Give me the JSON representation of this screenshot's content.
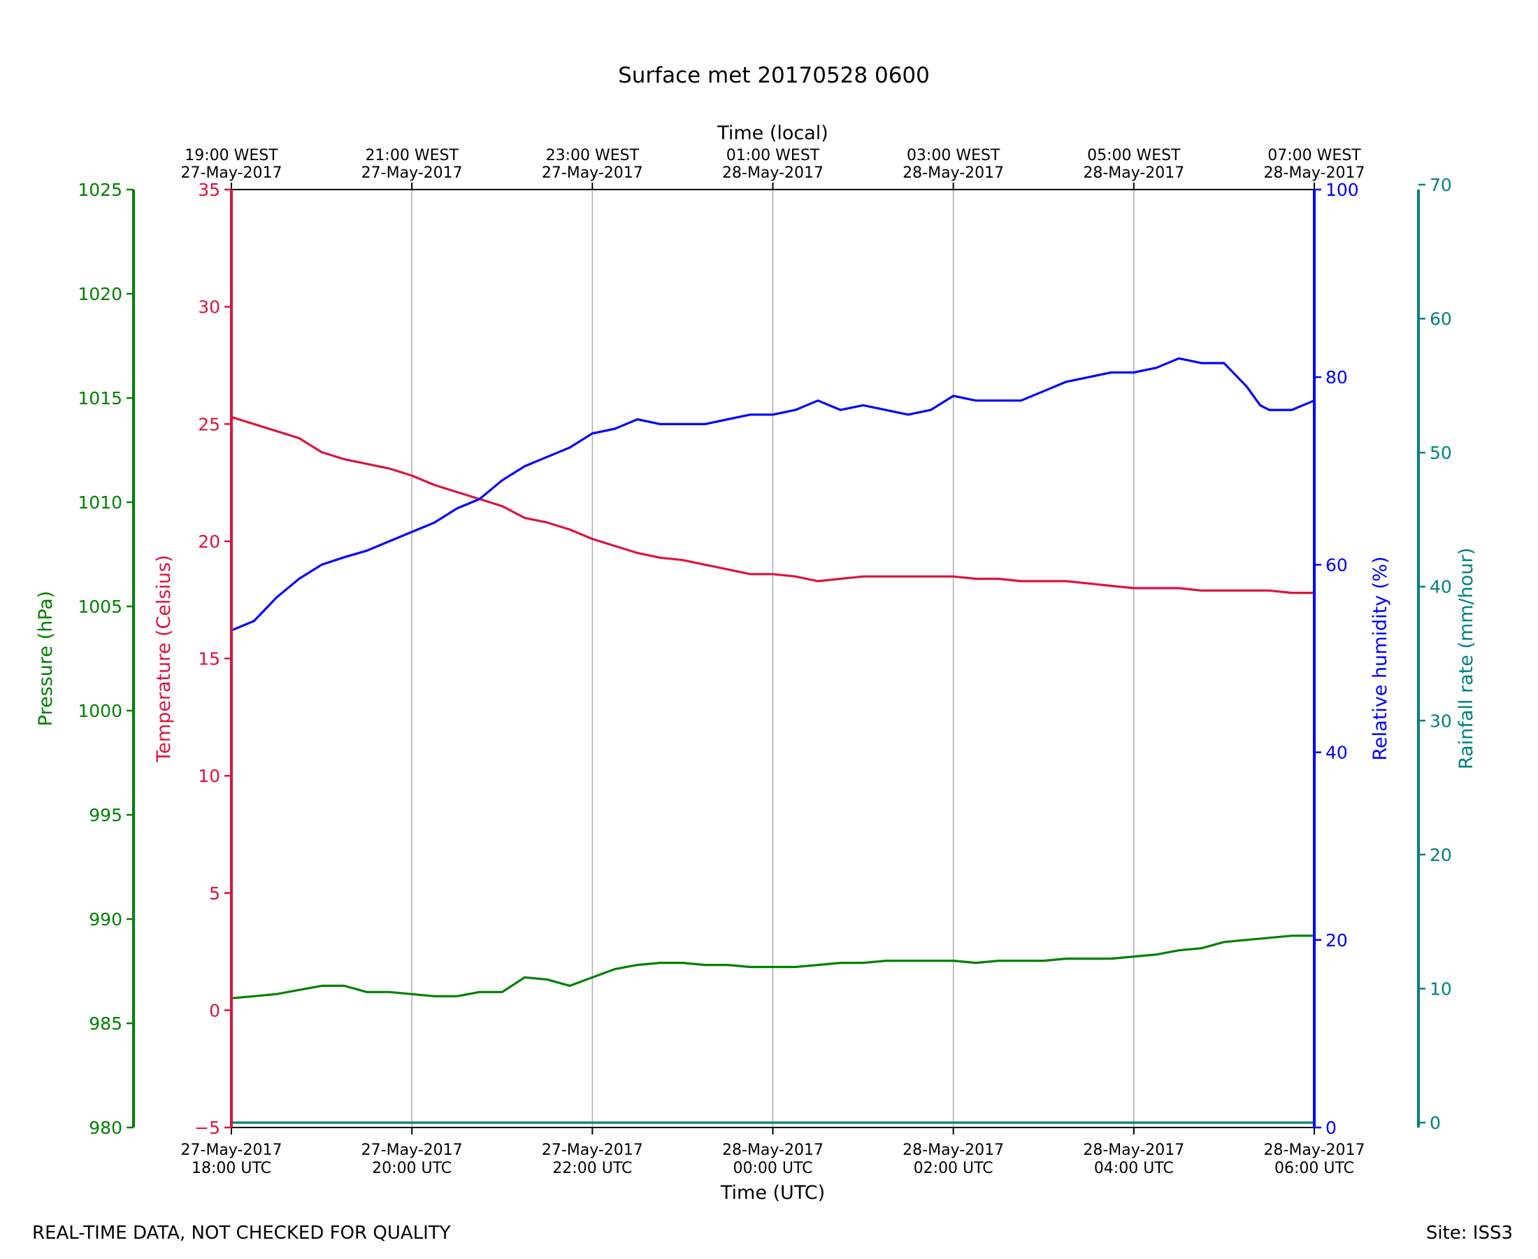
{
  "chart_data": {
    "type": "line",
    "title": "Surface met 20170528 0600",
    "x_axis": {
      "label": "Time (UTC)",
      "range_hours": [
        0,
        12
      ],
      "grid": true,
      "ticks": [
        {
          "h": 0,
          "line1": "27-May-2017",
          "line2": "18:00 UTC"
        },
        {
          "h": 2,
          "line1": "27-May-2017",
          "line2": "20:00 UTC"
        },
        {
          "h": 4,
          "line1": "27-May-2017",
          "line2": "22:00 UTC"
        },
        {
          "h": 6,
          "line1": "28-May-2017",
          "line2": "00:00 UTC"
        },
        {
          "h": 8,
          "line1": "28-May-2017",
          "line2": "02:00 UTC"
        },
        {
          "h": 10,
          "line1": "28-May-2017",
          "line2": "04:00 UTC"
        },
        {
          "h": 12,
          "line1": "28-May-2017",
          "line2": "06:00 UTC"
        }
      ]
    },
    "x_top_axis": {
      "label": "Time (local)",
      "ticks": [
        {
          "h": 0,
          "line1": "19:00 WEST",
          "line2": "27-May-2017"
        },
        {
          "h": 2,
          "line1": "21:00 WEST",
          "line2": "27-May-2017"
        },
        {
          "h": 4,
          "line1": "23:00 WEST",
          "line2": "27-May-2017"
        },
        {
          "h": 6,
          "line1": "01:00 WEST",
          "line2": "28-May-2017"
        },
        {
          "h": 8,
          "line1": "03:00 WEST",
          "line2": "28-May-2017"
        },
        {
          "h": 10,
          "line1": "05:00 WEST",
          "line2": "28-May-2017"
        },
        {
          "h": 12,
          "line1": "07:00 WEST",
          "line2": "28-May-2017"
        }
      ]
    },
    "y_axes": {
      "pressure": {
        "label": "Pressure (hPa)",
        "color": "#008000",
        "ylim": [
          980,
          1025
        ],
        "ticks": [
          "980",
          "985",
          "990",
          "995",
          "1000",
          "1005",
          "1010",
          "1015",
          "1020",
          "1025"
        ]
      },
      "temperature": {
        "label": "Temperature (Celsius)",
        "color": "#dc143c",
        "ylim": [
          -5,
          35
        ],
        "ticks": [
          "−5",
          "0",
          "5",
          "10",
          "15",
          "20",
          "25",
          "30",
          "35"
        ]
      },
      "humidity": {
        "label": "Relative humidity (%)",
        "color": "#0000ff",
        "ylim": [
          0,
          100
        ],
        "ticks": [
          "0",
          "20",
          "40",
          "60",
          "80",
          "100"
        ]
      },
      "rainfall": {
        "label": "Rainfall rate (mm/hour)",
        "color": "#008080",
        "ylim": [
          0,
          70
        ],
        "ticks": [
          "0",
          "10",
          "20",
          "30",
          "40",
          "50",
          "60",
          "70"
        ]
      }
    },
    "series": [
      {
        "key": "temperature",
        "color": "#dc143c",
        "x": [
          0,
          0.25,
          0.5,
          0.75,
          1.0,
          1.25,
          1.5,
          1.75,
          2.0,
          2.25,
          2.5,
          2.75,
          3.0,
          3.25,
          3.5,
          3.75,
          4.0,
          4.25,
          4.5,
          4.75,
          5.0,
          5.25,
          5.5,
          5.75,
          6.0,
          6.25,
          6.5,
          6.75,
          7.0,
          7.25,
          7.5,
          7.75,
          8.0,
          8.25,
          8.5,
          8.75,
          9.0,
          9.25,
          9.5,
          9.75,
          10.0,
          10.25,
          10.5,
          10.75,
          11.0,
          11.25,
          11.5,
          11.75,
          12.0
        ],
        "y": [
          25.3,
          25.0,
          24.7,
          24.4,
          23.8,
          23.5,
          23.3,
          23.1,
          22.8,
          22.4,
          22.1,
          21.8,
          21.5,
          21.0,
          20.8,
          20.5,
          20.1,
          19.8,
          19.5,
          19.3,
          19.2,
          19.0,
          18.8,
          18.6,
          18.6,
          18.5,
          18.3,
          18.4,
          18.5,
          18.5,
          18.5,
          18.5,
          18.5,
          18.4,
          18.4,
          18.3,
          18.3,
          18.3,
          18.2,
          18.1,
          18.0,
          18.0,
          18.0,
          17.9,
          17.9,
          17.9,
          17.9,
          17.8,
          17.8
        ]
      },
      {
        "key": "humidity",
        "color": "#0000ff",
        "x": [
          0,
          0.25,
          0.5,
          0.75,
          1.0,
          1.25,
          1.5,
          1.75,
          2.0,
          2.25,
          2.5,
          2.75,
          3.0,
          3.25,
          3.5,
          3.75,
          4.0,
          4.25,
          4.5,
          4.75,
          5.0,
          5.25,
          5.5,
          5.75,
          6.0,
          6.25,
          6.5,
          6.75,
          7.0,
          7.25,
          7.5,
          7.75,
          8.0,
          8.25,
          8.5,
          8.75,
          9.0,
          9.25,
          9.5,
          9.75,
          10.0,
          10.25,
          10.5,
          10.75,
          11.0,
          11.25,
          11.4,
          11.5,
          11.75,
          12.0
        ],
        "y": [
          53.0,
          54.0,
          56.5,
          58.5,
          60.0,
          60.8,
          61.5,
          62.5,
          63.5,
          64.5,
          66.0,
          67.0,
          69.0,
          70.5,
          71.5,
          72.5,
          74.0,
          74.5,
          75.5,
          75.0,
          75.0,
          75.0,
          75.5,
          76.0,
          76.0,
          76.5,
          77.5,
          76.5,
          77.0,
          76.5,
          76.0,
          76.5,
          78.0,
          77.5,
          77.5,
          77.5,
          78.5,
          79.5,
          80.0,
          80.5,
          80.5,
          81.0,
          82.0,
          81.5,
          81.5,
          79.0,
          77.0,
          76.5,
          76.5,
          77.5
        ]
      },
      {
        "key": "pressure",
        "color": "#008000",
        "x": [
          0,
          0.25,
          0.5,
          0.75,
          1.0,
          1.25,
          1.5,
          1.75,
          2.0,
          2.25,
          2.5,
          2.75,
          3.0,
          3.25,
          3.5,
          3.75,
          4.0,
          4.25,
          4.5,
          4.75,
          5.0,
          5.25,
          5.5,
          5.75,
          6.0,
          6.25,
          6.5,
          6.75,
          7.0,
          7.25,
          7.5,
          7.75,
          8.0,
          8.25,
          8.5,
          8.75,
          9.0,
          9.25,
          9.5,
          9.75,
          10.0,
          10.25,
          10.5,
          10.75,
          11.0,
          11.25,
          11.5,
          11.75,
          12.0
        ],
        "y": [
          986.2,
          986.3,
          986.4,
          986.6,
          986.8,
          986.8,
          986.5,
          986.5,
          986.4,
          986.3,
          986.3,
          986.5,
          986.5,
          987.2,
          987.1,
          986.8,
          987.2,
          987.6,
          987.8,
          987.9,
          987.9,
          987.8,
          987.8,
          987.7,
          987.7,
          987.7,
          987.8,
          987.9,
          987.9,
          988.0,
          988.0,
          988.0,
          988.0,
          987.9,
          988.0,
          988.0,
          988.0,
          988.1,
          988.1,
          988.1,
          988.2,
          988.3,
          988.5,
          988.6,
          988.9,
          989.0,
          989.1,
          989.2,
          989.2
        ]
      },
      {
        "key": "rainfall",
        "color": "#008080",
        "x": [
          0,
          12
        ],
        "y": [
          0,
          0
        ]
      }
    ]
  },
  "footer": {
    "left": "REAL-TIME DATA, NOT CHECKED FOR QUALITY",
    "right": "Site: ISS3"
  }
}
